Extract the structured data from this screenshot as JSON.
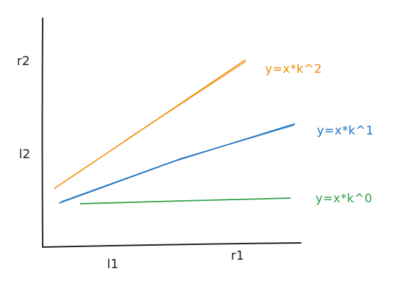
{
  "axes": {
    "y_ticks": {
      "upper": "r2",
      "lower": "l2"
    },
    "x_ticks": {
      "left": "l1",
      "right": "r1"
    }
  },
  "lines": [
    {
      "label": "y=x*k^2",
      "color": "#f08c00"
    },
    {
      "label": "y=x*k^1",
      "color": "#1971c2"
    },
    {
      "label": "y=x*k^0",
      "color": "#2f9e44"
    }
  ],
  "axis_color": "#1e1e1e"
}
